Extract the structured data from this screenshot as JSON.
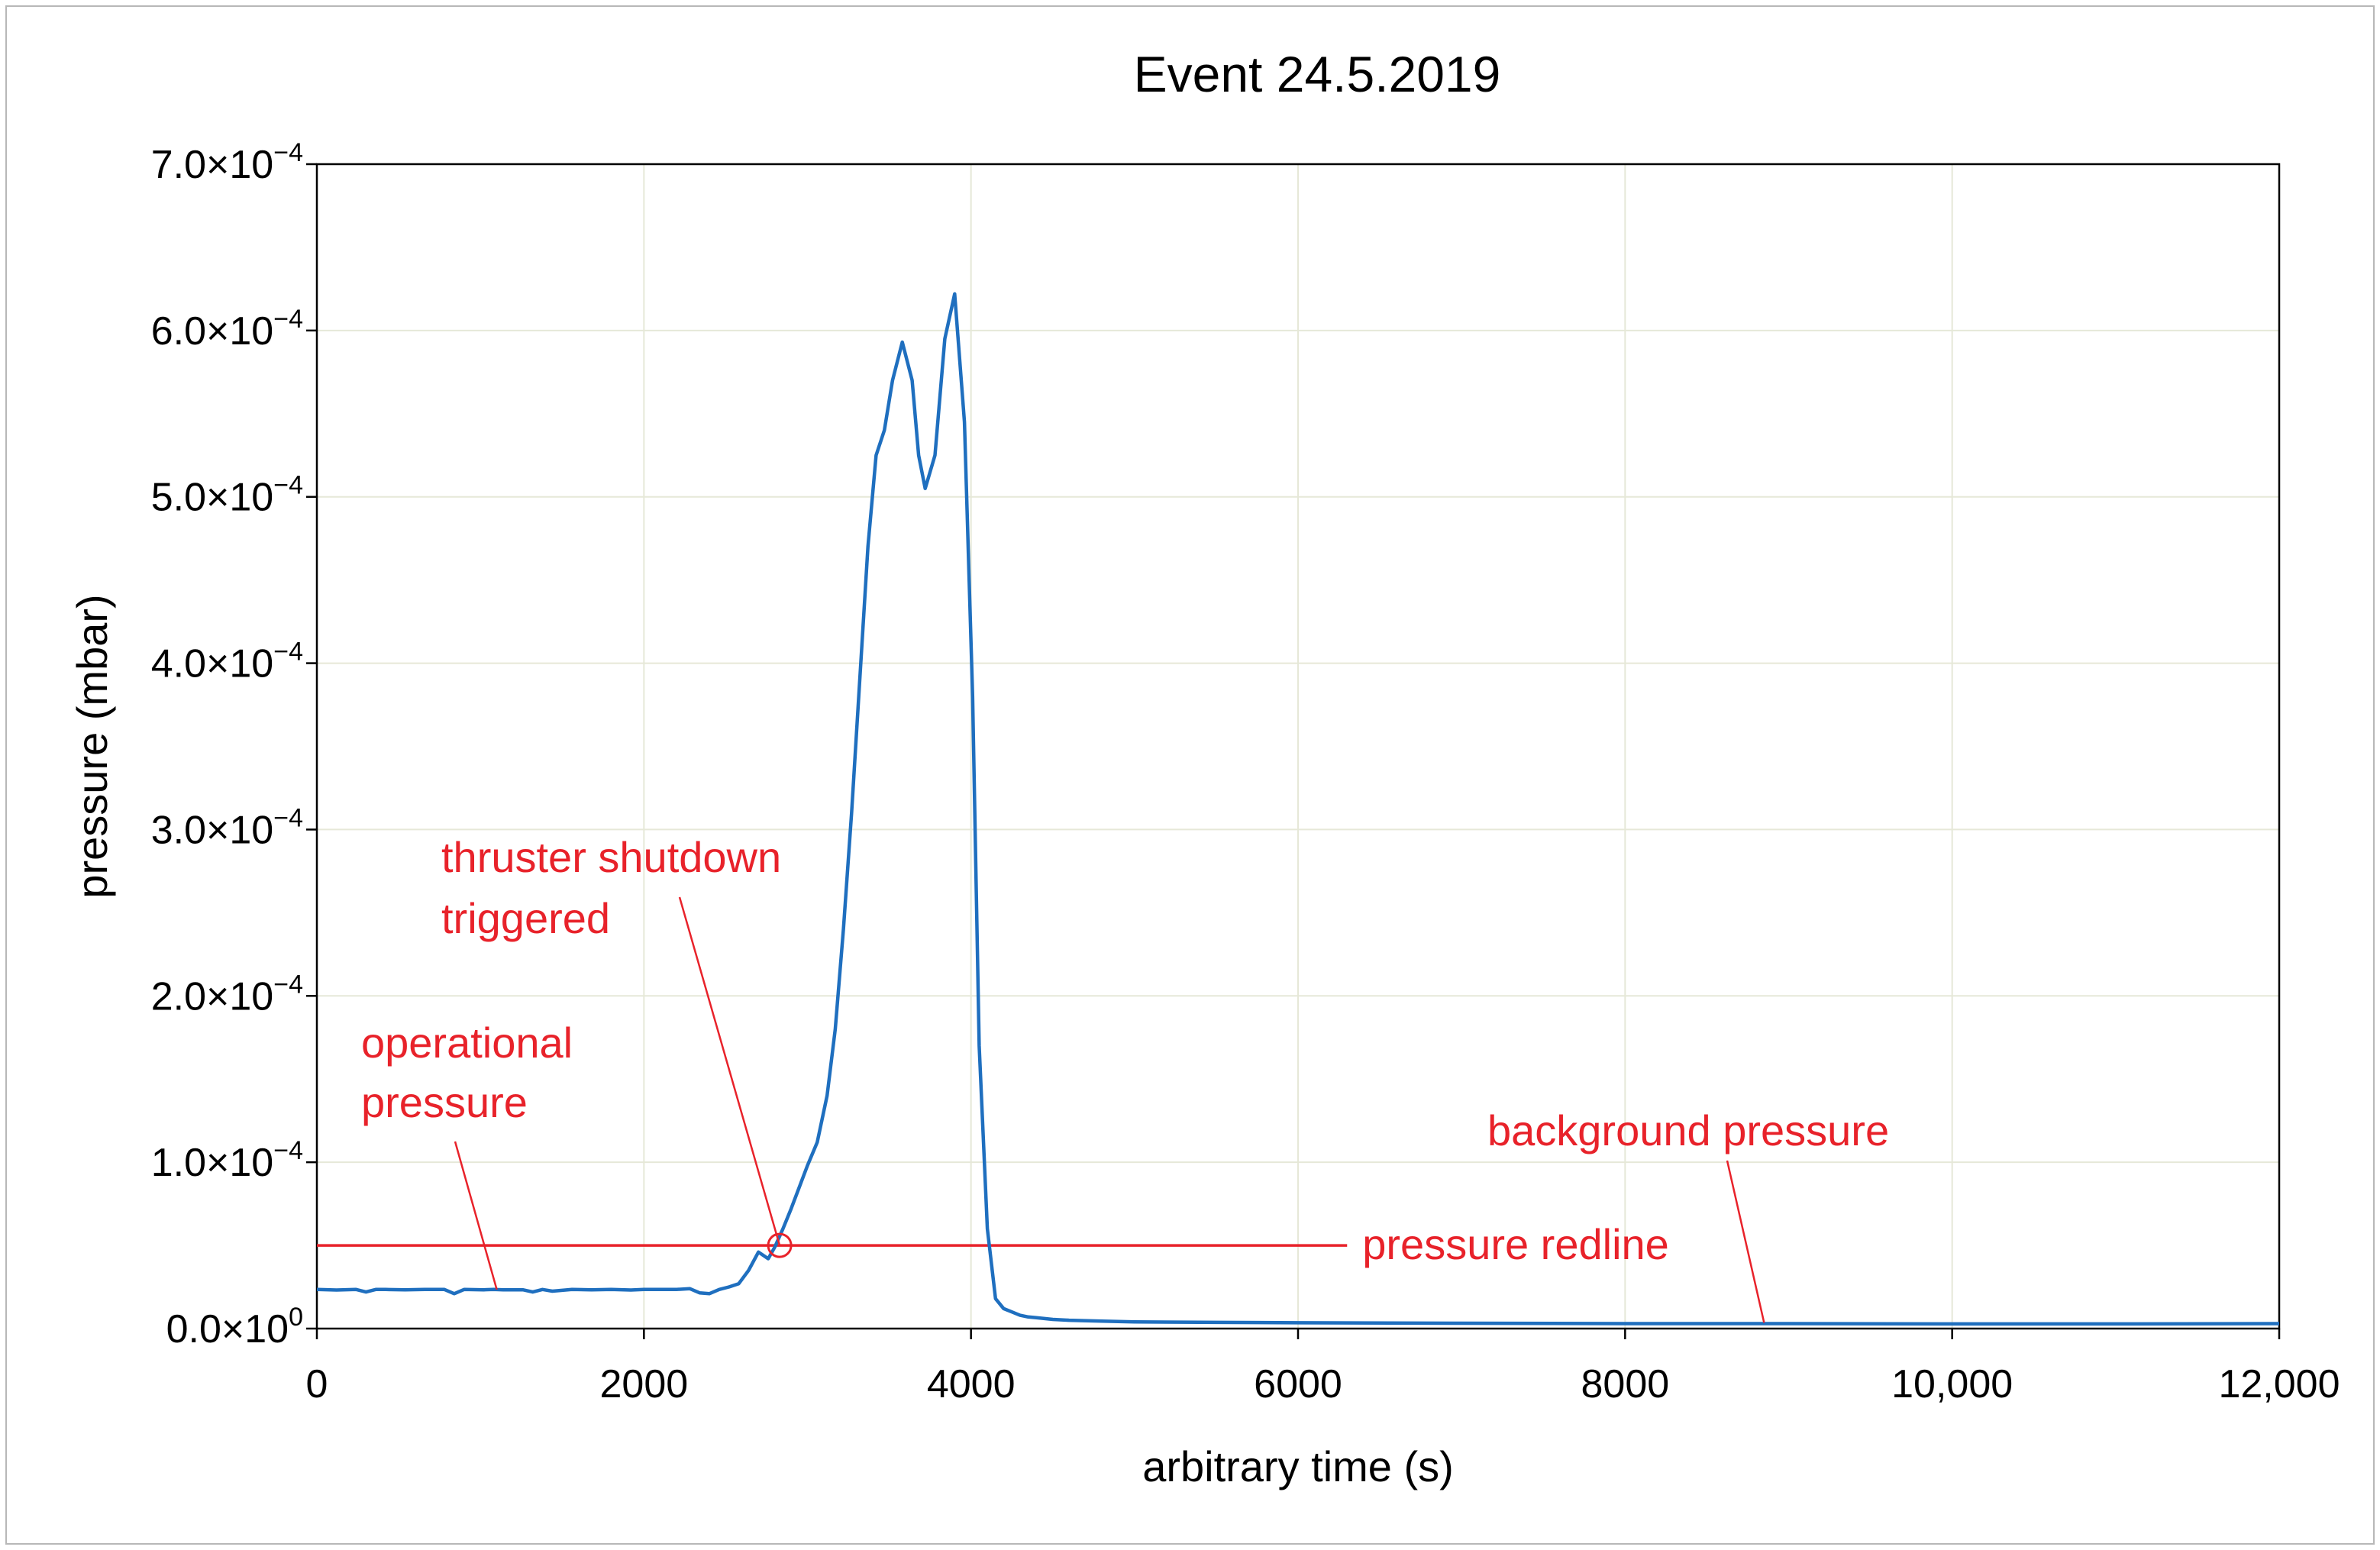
{
  "chart_data": {
    "type": "line",
    "title": "Event 24.5.2019",
    "xlabel": "arbitrary time (s)",
    "ylabel": "pressure (mbar)",
    "xlim": [
      0,
      12000
    ],
    "ylim": [
      0,
      0.0007
    ],
    "x_ticks": [
      {
        "value": 0,
        "label": "0"
      },
      {
        "value": 2000,
        "label": "2000"
      },
      {
        "value": 4000,
        "label": "4000"
      },
      {
        "value": 6000,
        "label": "6000"
      },
      {
        "value": 8000,
        "label": "8000"
      },
      {
        "value": 10000,
        "label": "10,000"
      },
      {
        "value": 12000,
        "label": "12,000"
      }
    ],
    "y_ticks": [
      {
        "value": 0,
        "mantissa": "0.0×10",
        "exp": "0"
      },
      {
        "value": 0.0001,
        "mantissa": "1.0×10",
        "exp": "−4"
      },
      {
        "value": 0.0002,
        "mantissa": "2.0×10",
        "exp": "−4"
      },
      {
        "value": 0.0003,
        "mantissa": "3.0×10",
        "exp": "−4"
      },
      {
        "value": 0.0004,
        "mantissa": "4.0×10",
        "exp": "−4"
      },
      {
        "value": 0.0005,
        "mantissa": "5.0×10",
        "exp": "−4"
      },
      {
        "value": 0.0006,
        "mantissa": "6.0×10",
        "exp": "−4"
      },
      {
        "value": 0.0007,
        "mantissa": "7.0×10",
        "exp": "−4"
      }
    ],
    "grid": true,
    "series": [
      {
        "color": "#1f6fbf",
        "x": [
          0,
          120,
          240,
          300,
          360,
          420,
          540,
          660,
          780,
          840,
          900,
          1020,
          1080,
          1140,
          1260,
          1320,
          1380,
          1440,
          1560,
          1680,
          1800,
          1920,
          2000,
          2100,
          2200,
          2280,
          2340,
          2400,
          2460,
          2520,
          2580,
          2640,
          2700,
          2760,
          2800,
          2850,
          2900,
          2950,
          3000,
          3060,
          3120,
          3170,
          3220,
          3270,
          3320,
          3370,
          3420,
          3470,
          3520,
          3580,
          3640,
          3680,
          3720,
          3780,
          3840,
          3900,
          3960,
          4010,
          4050,
          4100,
          4150,
          4200,
          4250,
          4300,
          4350,
          4400,
          4500,
          4600,
          4800,
          5000,
          5500,
          6000,
          7000,
          8000,
          9000,
          10000,
          11000,
          12000
        ],
        "y": [
          2.35e-05,
          2.32e-05,
          2.35e-05,
          2.2e-05,
          2.35e-05,
          2.35e-05,
          2.33e-05,
          2.35e-05,
          2.35e-05,
          2.1e-05,
          2.35e-05,
          2.33e-05,
          2.35e-05,
          2.33e-05,
          2.33e-05,
          2.2e-05,
          2.35e-05,
          2.25e-05,
          2.35e-05,
          2.33e-05,
          2.35e-05,
          2.32e-05,
          2.35e-05,
          2.35e-05,
          2.35e-05,
          2.4e-05,
          2.15e-05,
          2.1e-05,
          2.35e-05,
          2.5e-05,
          2.7e-05,
          3.5e-05,
          4.6e-05,
          4.2e-05,
          4.9e-05,
          6e-05,
          7.2e-05,
          8.5e-05,
          9.8e-05,
          0.000112,
          0.00014,
          0.00018,
          0.00024,
          0.00031,
          0.00039,
          0.00047,
          0.000525,
          0.00054,
          0.00057,
          0.000593,
          0.00057,
          0.000525,
          0.000505,
          0.000525,
          0.000595,
          0.000622,
          0.000545,
          0.00038,
          0.00017,
          6e-05,
          1.8e-05,
          1.2e-05,
          1e-05,
          8e-06,
          7e-06,
          6.5e-06,
          5.5e-06,
          5e-06,
          4.5e-06,
          4e-06,
          3.7e-06,
          3.5e-06,
          3.2e-06,
          3e-06,
          3e-06,
          2.8e-06,
          2.8e-06,
          3e-06
        ]
      }
    ],
    "redline": {
      "value": 5e-05,
      "x_start": 0,
      "x_end": 6300,
      "label": "pressure redline"
    },
    "annotations": [
      {
        "lines": [
          "thruster shutdown",
          "triggered"
        ],
        "point": [
          2830,
          5e-05
        ]
      },
      {
        "lines": [
          "operational",
          "pressure"
        ],
        "point": [
          1100,
          2.35e-05
        ]
      },
      {
        "lines": [
          "background pressure"
        ],
        "point": [
          8850,
          3.5e-06
        ]
      }
    ],
    "colors": {
      "line": "#1f6fbf",
      "annotation": "#e8222a",
      "grid": "#e6e8d8",
      "axis": "#000000",
      "frame": "#b8b8b8"
    }
  }
}
